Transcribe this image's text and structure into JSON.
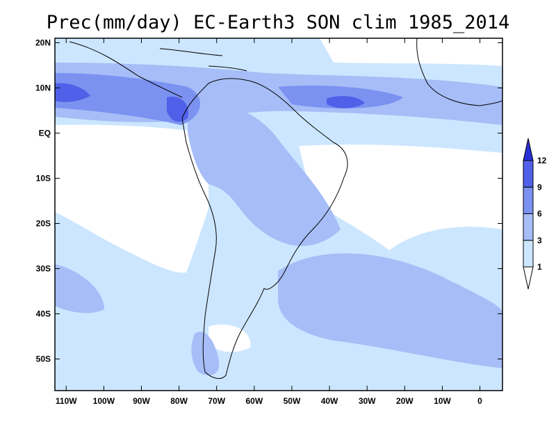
{
  "chart_data": {
    "type": "heatmap",
    "title": "Prec(mm/day) EC-Earth3 SON clim 1985_2014",
    "x_ticks": [
      "110W",
      "100W",
      "90W",
      "80W",
      "70W",
      "60W",
      "50W",
      "40W",
      "30W",
      "20W",
      "10W",
      "0"
    ],
    "y_ticks": [
      "20N",
      "10N",
      "EQ",
      "10S",
      "20S",
      "30S",
      "40S",
      "50S"
    ],
    "lon_range": [
      -113,
      6
    ],
    "lat_range": [
      -57,
      21
    ],
    "colorbar": {
      "levels": [
        "1",
        "3",
        "6",
        "9",
        "12"
      ],
      "colors": [
        "#ffffff",
        "#cce6ff",
        "#a6bdf7",
        "#7b92f1",
        "#5060e8",
        "#2a30d8"
      ],
      "extend": "both"
    },
    "colors": {
      "land": "#ffffff",
      "coast": "#000000",
      "background": "#ffffff"
    }
  }
}
